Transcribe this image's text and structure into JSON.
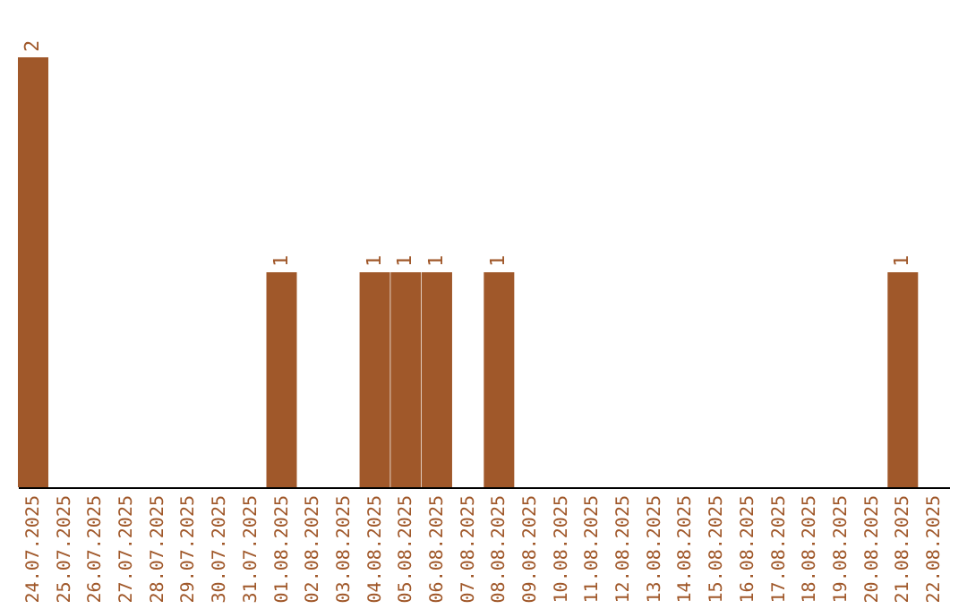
{
  "chart_data": {
    "type": "bar",
    "categories": [
      "24.07.2025",
      "25.07.2025",
      "26.07.2025",
      "27.07.2025",
      "28.07.2025",
      "29.07.2025",
      "30.07.2025",
      "31.07.2025",
      "01.08.2025",
      "02.08.2025",
      "03.08.2025",
      "04.08.2025",
      "05.08.2025",
      "06.08.2025",
      "07.08.2025",
      "08.08.2025",
      "09.08.2025",
      "10.08.2025",
      "11.08.2025",
      "12.08.2025",
      "13.08.2025",
      "14.08.2025",
      "15.08.2025",
      "16.08.2025",
      "17.08.2025",
      "18.08.2025",
      "19.08.2025",
      "20.08.2025",
      "21.08.2025",
      "22.08.2025"
    ],
    "values": [
      2,
      0,
      0,
      0,
      0,
      0,
      0,
      0,
      1,
      0,
      0,
      1,
      1,
      1,
      0,
      1,
      0,
      0,
      0,
      0,
      0,
      0,
      0,
      0,
      0,
      0,
      0,
      0,
      1,
      0
    ],
    "value_labels": [
      "2",
      null,
      null,
      null,
      null,
      null,
      null,
      null,
      "1",
      null,
      null,
      "1",
      "1",
      "1",
      null,
      "1",
      null,
      null,
      null,
      null,
      null,
      null,
      null,
      null,
      null,
      null,
      null,
      null,
      "1",
      null
    ],
    "color": "#a0582a",
    "ylim": [
      0,
      2
    ],
    "tick_labels": "x",
    "grid": false
  }
}
